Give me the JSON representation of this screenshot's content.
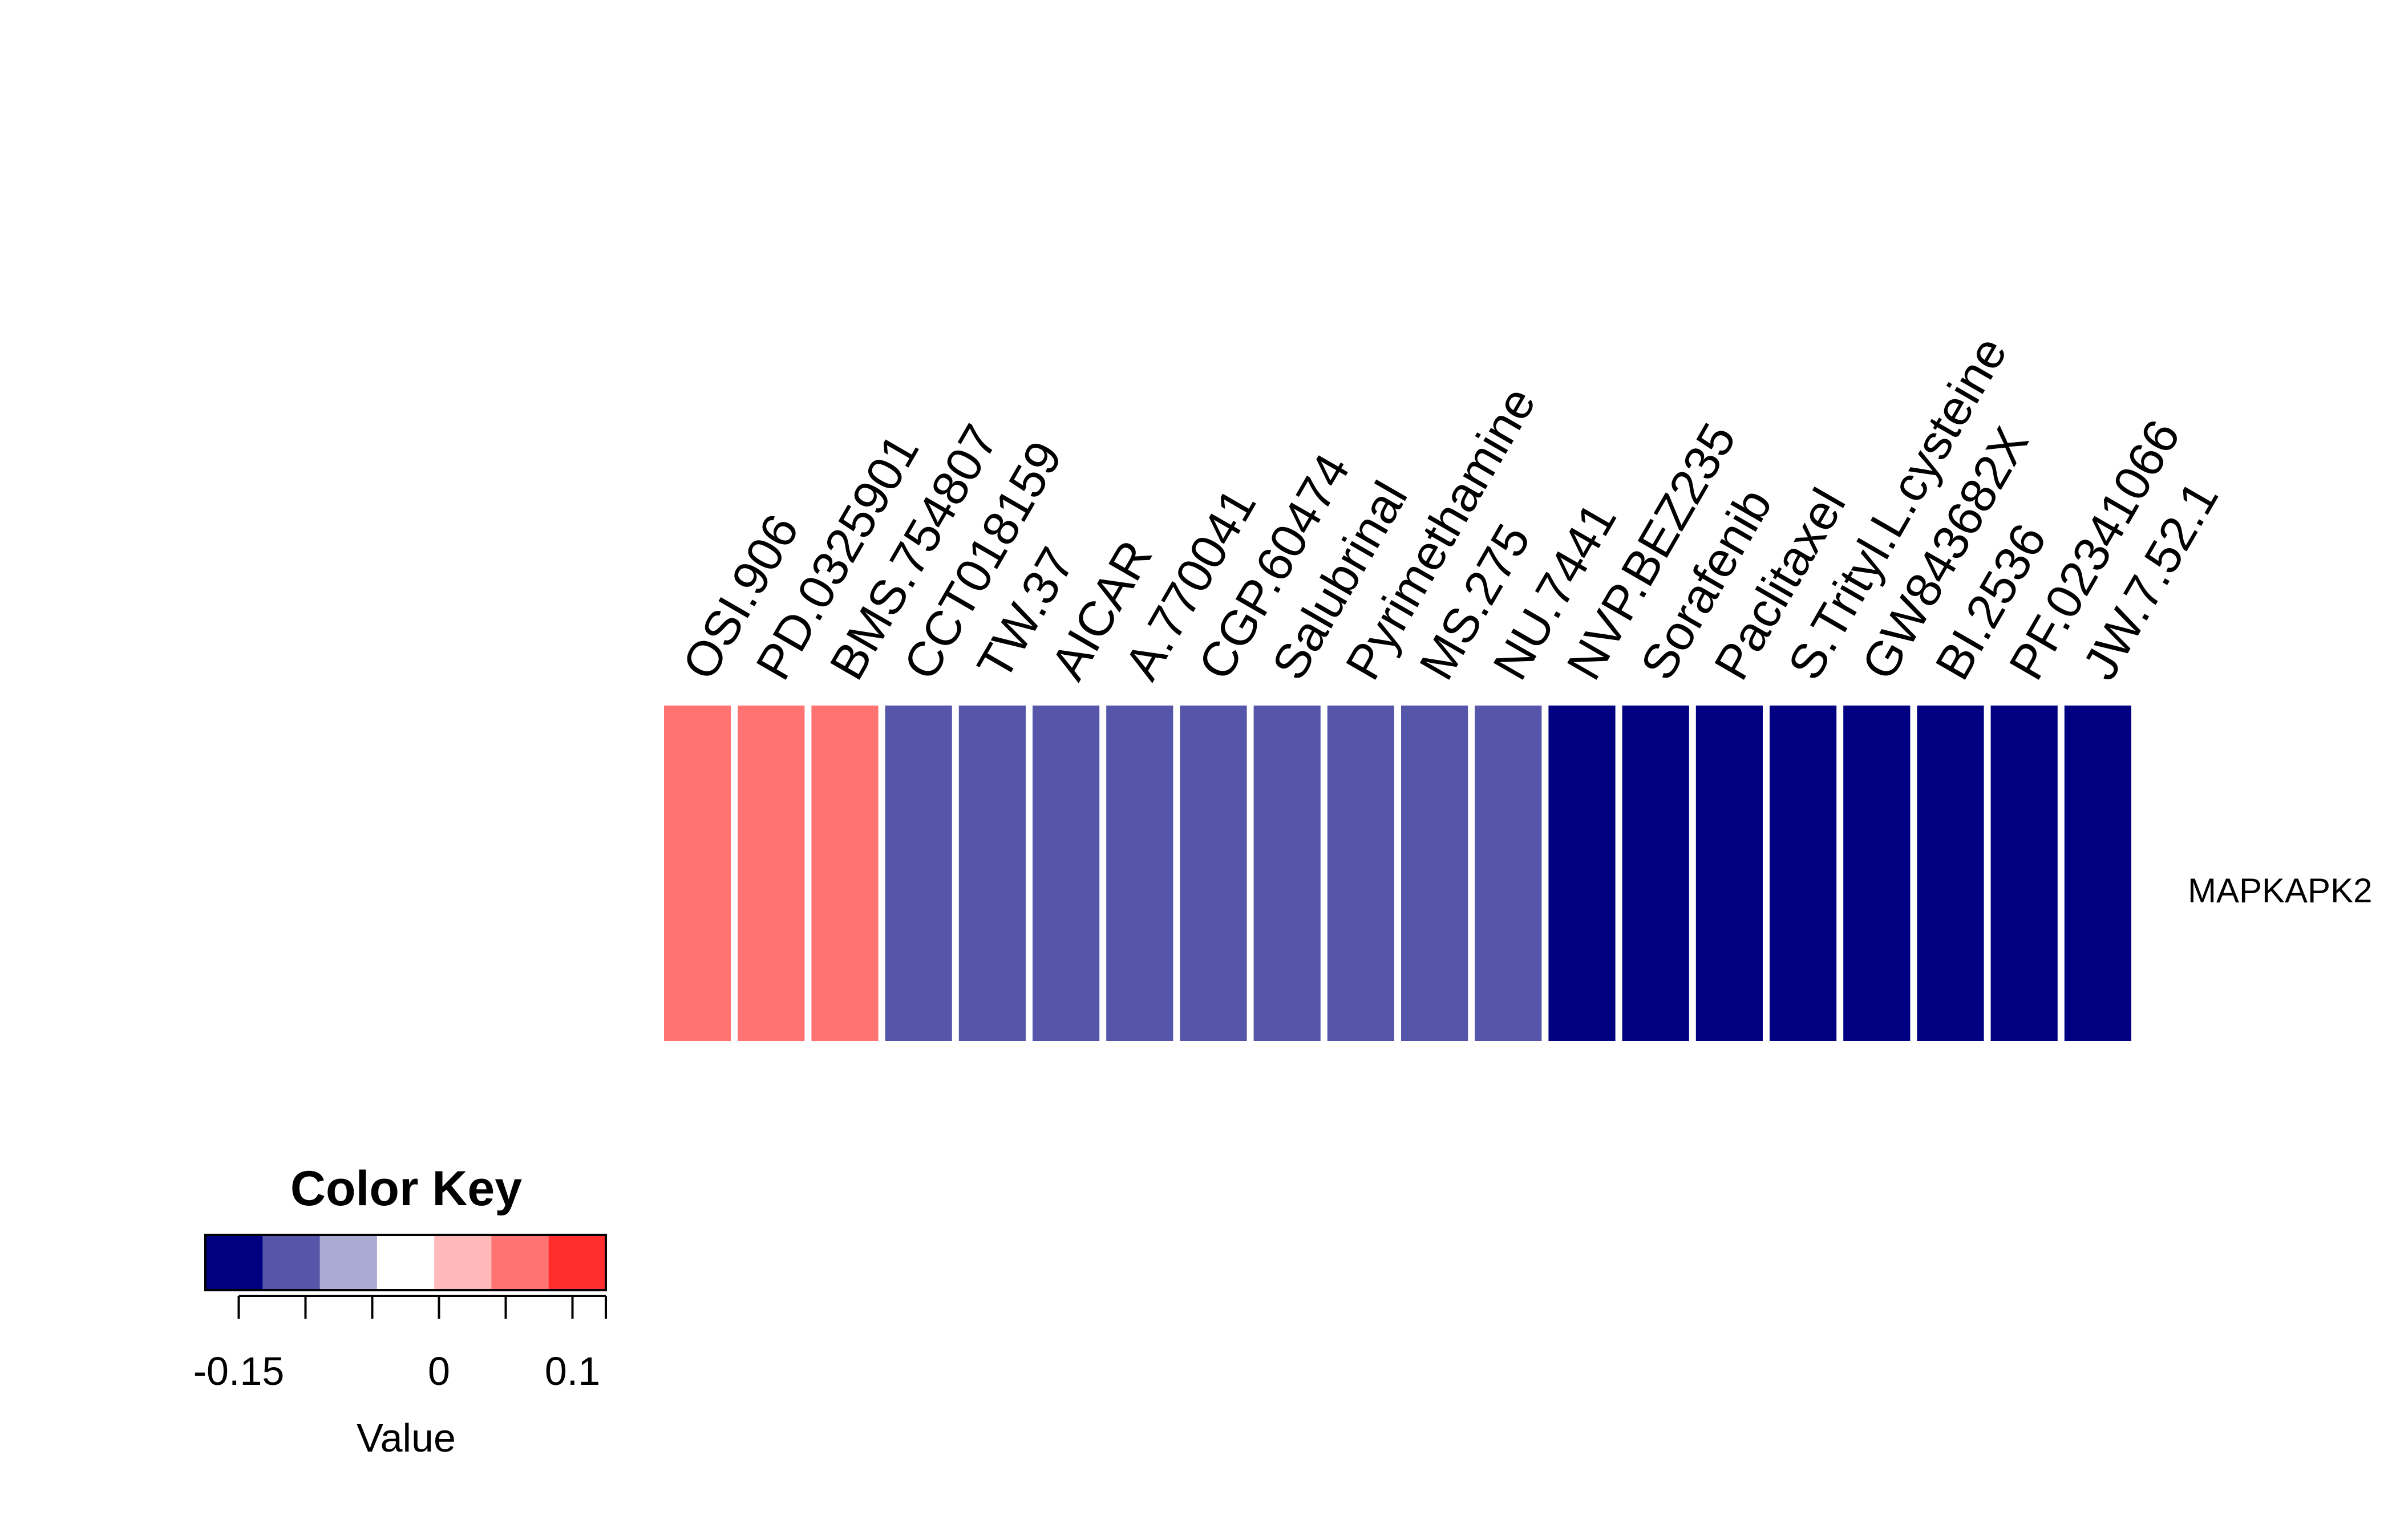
{
  "chart_data": {
    "type": "heatmap",
    "title": "",
    "row_labels": [
      "MAPKAPK2"
    ],
    "column_labels": [
      "OSI.906",
      "PD.0325901",
      "BMS.754807",
      "CCT018159",
      "TW.37",
      "AICAR",
      "A.770041",
      "CGP.60474",
      "Salubrinal",
      "Pyrimethamine",
      "MS.275",
      "NU.7441",
      "NVP.BEZ235",
      "Sorafenib",
      "Paclitaxel",
      "S.Trityl.L.cysteine",
      "GW843682X",
      "BI.2536",
      "PF.02341066",
      "JW.7.52.1"
    ],
    "values": [
      [
        0.075,
        0.075,
        0.075,
        -0.1,
        -0.1,
        -0.1,
        -0.1,
        -0.1,
        -0.1,
        -0.1,
        -0.1,
        -0.1,
        -0.15,
        -0.15,
        -0.15,
        -0.15,
        -0.15,
        -0.15,
        -0.15,
        -0.15
      ]
    ],
    "color_key": {
      "title": "Color Key",
      "xlabel": "Value",
      "range": [
        -0.175,
        0.125
      ],
      "breaks": [
        -0.175,
        -0.13214,
        -0.08929,
        -0.04643,
        -0.00357,
        0.03929,
        0.08214,
        0.125
      ],
      "colors": [
        "#000080",
        "#5555AA",
        "#AAAAD4",
        "#FFFFFF",
        "#FFB9B9",
        "#FF7373",
        "#FF2D2D"
      ],
      "tick_labels": [
        {
          "value": -0.15,
          "label": "-0.15"
        },
        {
          "value": -0.1,
          "label": ""
        },
        {
          "value": -0.05,
          "label": ""
        },
        {
          "value": 0,
          "label": "0"
        },
        {
          "value": 0.05,
          "label": ""
        },
        {
          "value": 0.1,
          "label": "0.1"
        },
        {
          "value": 0.125,
          "label": ""
        }
      ]
    }
  }
}
